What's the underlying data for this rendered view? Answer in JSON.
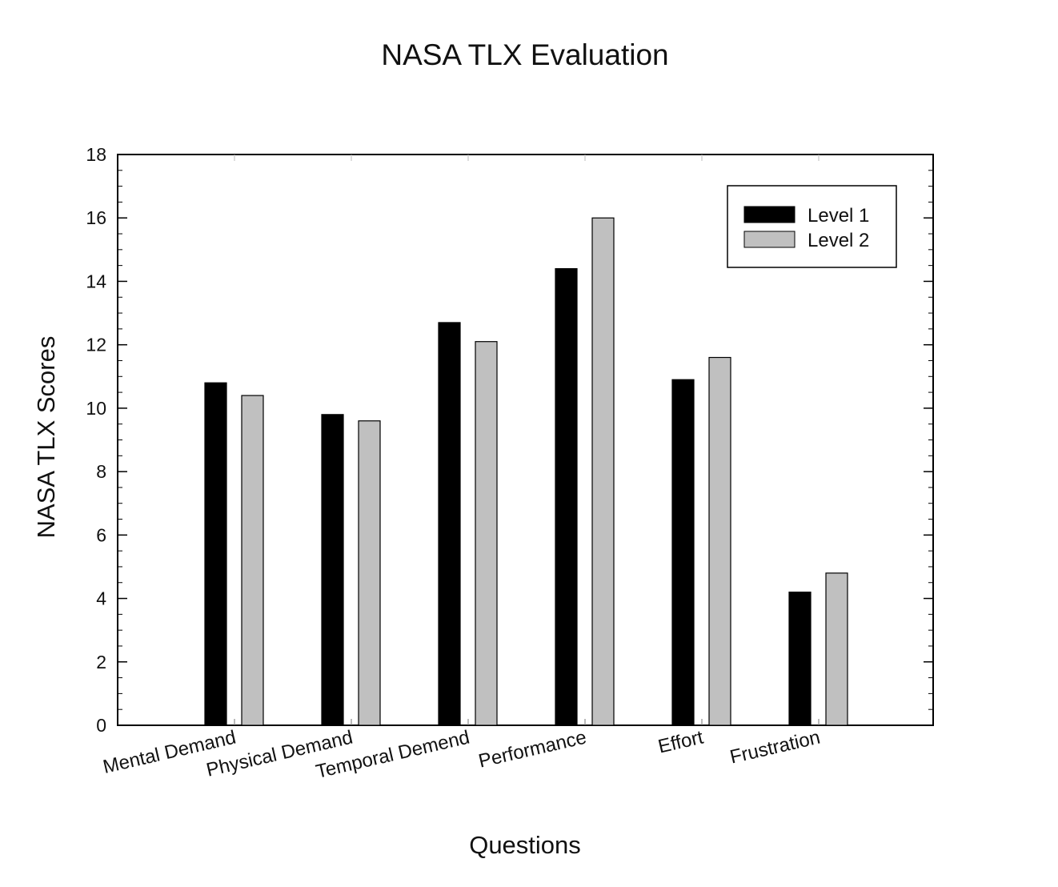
{
  "chart_data": {
    "type": "bar",
    "title": "NASA TLX Evaluation",
    "xlabel": "Questions",
    "ylabel": "NASA TLX Scores",
    "categories": [
      "Mental Demand",
      "Physical Demand",
      "Temporal Demend",
      "Performance",
      "Effort",
      "Frustration"
    ],
    "series": [
      {
        "name": "Level 1",
        "values": [
          10.8,
          9.8,
          12.7,
          14.4,
          10.9,
          4.2
        ],
        "color": "#000000"
      },
      {
        "name": "Level 2",
        "values": [
          10.4,
          9.6,
          12.1,
          16.0,
          11.6,
          4.8
        ],
        "color": "#c0c0c0"
      }
    ],
    "ylim": [
      0,
      18
    ],
    "yticks": [
      0,
      2,
      4,
      6,
      8,
      10,
      12,
      14,
      16,
      18
    ],
    "grid": false,
    "legend_position": "top-right"
  }
}
